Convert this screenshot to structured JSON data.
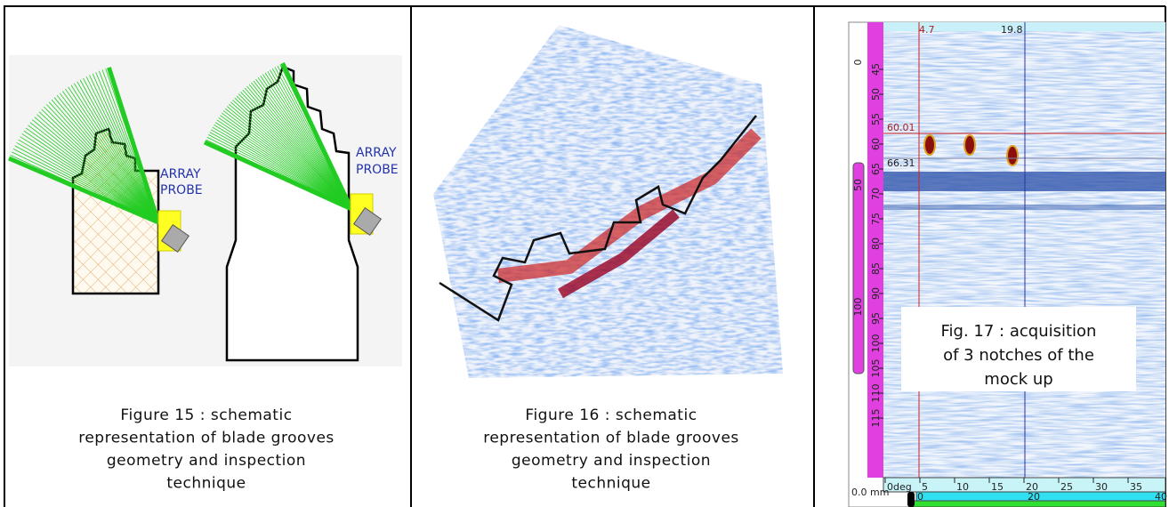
{
  "figures": [
    {
      "probe_label": [
        "ARRAY",
        "PROBE"
      ],
      "caption": [
        "Figure 15 : schematic",
        "representation of blade grooves",
        "geometry and inspection",
        "technique"
      ]
    },
    {
      "caption": [
        "Figure 16 : schematic",
        "representation of blade grooves",
        "geometry and inspection",
        "technique"
      ]
    },
    {
      "cursor_x": [
        "4.7",
        "19.8"
      ],
      "cursor_y": [
        "60.01",
        "66.31"
      ],
      "depth_ticks": [
        "45",
        "50",
        "55",
        "60",
        "65",
        "70",
        "75",
        "80",
        "85",
        "90",
        "95",
        "100",
        "105",
        "110",
        "115"
      ],
      "left_ticks": [
        "0",
        "50",
        "100"
      ],
      "x_ticks": [
        "0deg",
        "5",
        "10",
        "15",
        "20",
        "25",
        "30",
        "35"
      ],
      "x2_ticks": [
        "0",
        "20",
        "40"
      ],
      "offset": "0.0 mm",
      "caption": [
        "Fig. 17 : acquisition",
        "of 3 notches of the",
        "mock up"
      ]
    }
  ]
}
